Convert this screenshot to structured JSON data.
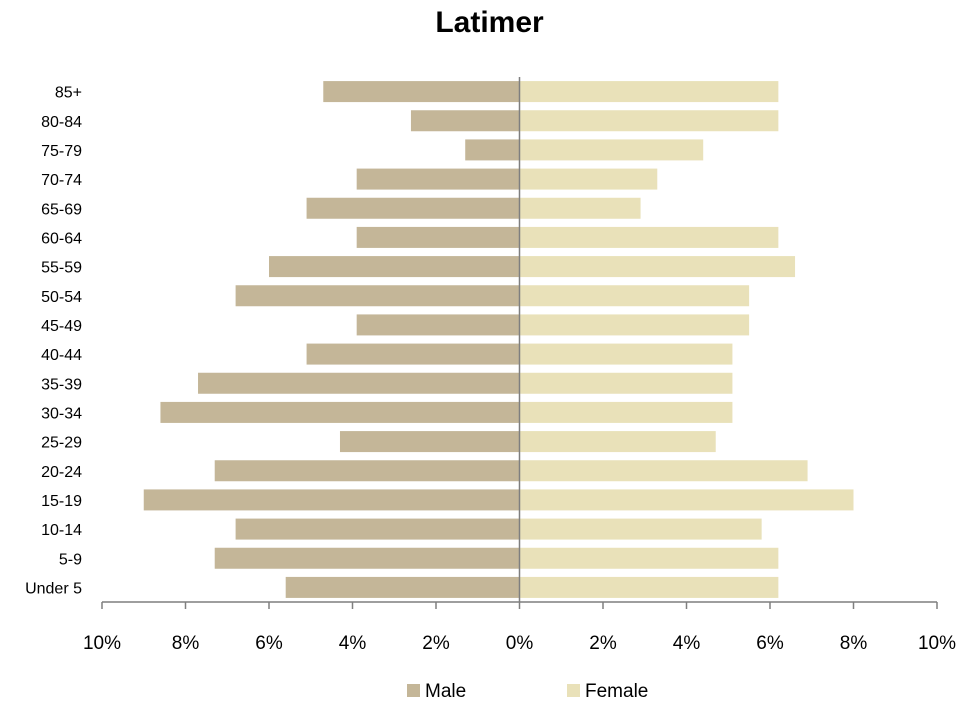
{
  "chart_data": {
    "type": "bar",
    "orientation": "horizontal",
    "title": "Latimer",
    "categories": [
      "85+",
      "80-84",
      "75-79",
      "70-74",
      "65-69",
      "60-64",
      "55-59",
      "50-54",
      "45-49",
      "40-44",
      "35-39",
      "30-34",
      "25-29",
      "20-24",
      "15-19",
      "10-14",
      "5-9",
      "Under 5"
    ],
    "series": [
      {
        "name": "Male",
        "color": "#c4b698",
        "values": [
          4.7,
          2.6,
          1.3,
          3.9,
          5.1,
          3.9,
          6.0,
          6.8,
          3.9,
          5.1,
          7.7,
          8.6,
          4.3,
          7.3,
          9.0,
          6.8,
          7.3,
          5.6
        ]
      },
      {
        "name": "Female",
        "color": "#e9e1b9",
        "values": [
          6.2,
          6.2,
          4.4,
          3.3,
          2.9,
          6.2,
          6.6,
          5.5,
          5.5,
          5.1,
          5.1,
          5.1,
          4.7,
          6.9,
          8.0,
          5.8,
          6.2,
          6.2
        ]
      }
    ],
    "xlim": [
      -10,
      10
    ],
    "xticks": [
      -10,
      -8,
      -6,
      -4,
      -2,
      0,
      2,
      4,
      6,
      8,
      10
    ],
    "xtick_labels": [
      "10%",
      "8%",
      "6%",
      "4%",
      "2%",
      "0%",
      "2%",
      "4%",
      "6%",
      "8%",
      "10%"
    ],
    "xlabel": "",
    "ylabel": "",
    "grid": false,
    "legend_position": "bottom"
  }
}
